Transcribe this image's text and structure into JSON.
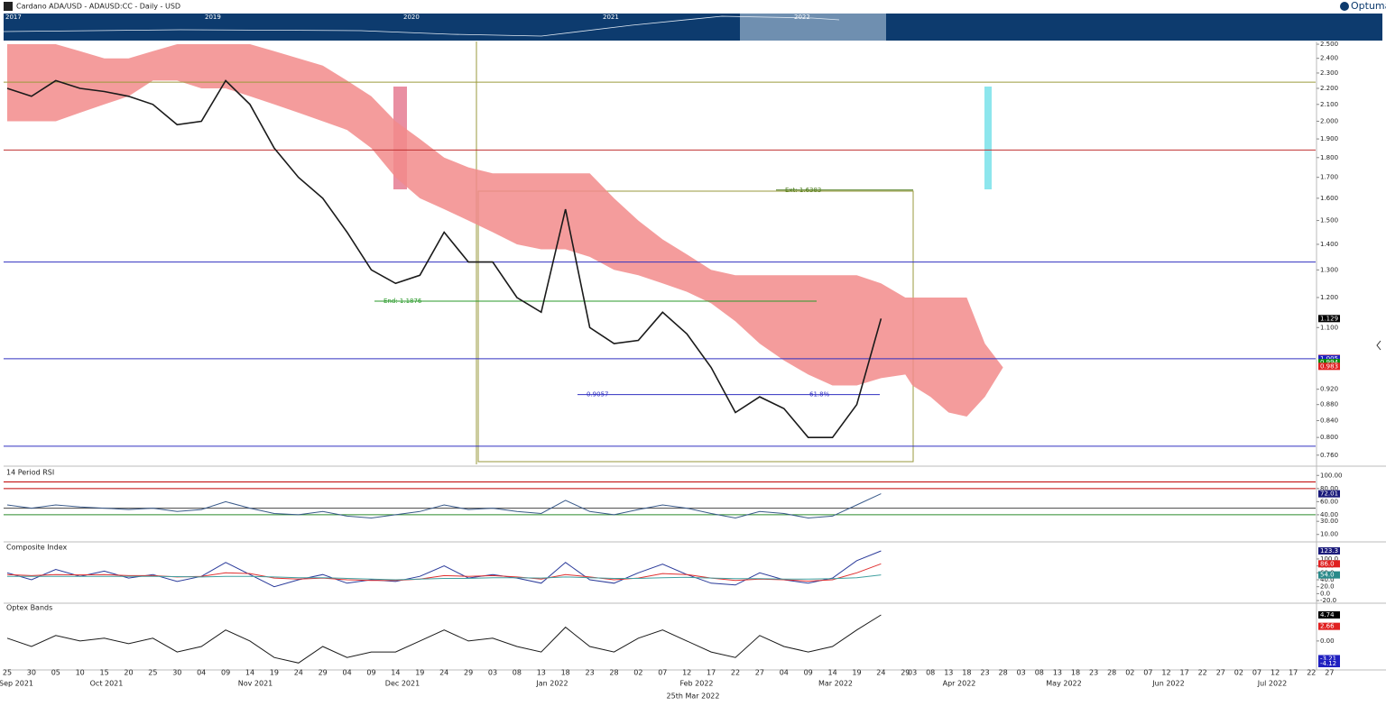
{
  "header": {
    "title": "Cardano ADA/USD - ADAUSD:CC - Daily - USD",
    "logo": "Optuma"
  },
  "navigator": {
    "years": [
      "2017",
      "2019",
      "2020",
      "2021",
      "2022"
    ]
  },
  "x_axis": {
    "months": [
      "Sep 2021",
      "Oct 2021",
      "Nov 2021",
      "Dec 2021",
      "Jan 2022",
      "Feb 2022",
      "Mar 2022",
      "Apr 2022",
      "May 2022",
      "Jun 2022",
      "Jul 2022"
    ],
    "caption": "25th Mar 2022"
  },
  "chart_data": [
    {
      "type": "line",
      "log": true,
      "categories": [
        "25",
        "30",
        "05",
        "10",
        "15",
        "20",
        "25",
        "30",
        "04",
        "09",
        "14",
        "19",
        "24",
        "29",
        "04",
        "09",
        "14",
        "19",
        "24",
        "29",
        "03",
        "08",
        "13",
        "18",
        "23",
        "28",
        "02",
        "07",
        "12",
        "17",
        "22",
        "27",
        "04",
        "09",
        "14",
        "19",
        "24",
        "29",
        "03",
        "08",
        "13",
        "18",
        "23",
        "28",
        "03",
        "08",
        "13",
        "18",
        "23",
        "28",
        "02",
        "07",
        "12",
        "17",
        "22",
        "27",
        "02",
        "07",
        "12",
        "17",
        "22",
        "27"
      ],
      "series": [
        {
          "color": "#1a1a1a",
          "values": [
            2.2,
            2.15,
            2.25,
            2.2,
            2.18,
            2.15,
            2.1,
            1.98,
            2.0,
            2.25,
            2.1,
            1.85,
            1.7,
            1.6,
            1.45,
            1.3,
            1.25,
            1.28,
            1.45,
            1.33,
            1.33,
            1.2,
            1.15,
            1.55,
            1.1,
            1.05,
            1.06,
            1.15,
            1.08,
            0.98,
            0.86,
            0.9,
            0.87,
            0.8,
            0.8,
            0.88,
            1.129,
            null,
            null,
            null,
            null,
            null,
            null,
            null,
            null,
            null,
            null,
            null,
            null,
            null,
            null,
            null,
            null,
            null,
            null,
            null,
            null,
            null,
            null,
            null,
            null,
            null
          ]
        }
      ],
      "band": {
        "color": "#f28b8b",
        "upper": [
          2.5,
          2.5,
          2.5,
          2.45,
          2.4,
          2.4,
          2.45,
          2.5,
          2.5,
          2.5,
          2.5,
          2.45,
          2.4,
          2.35,
          2.25,
          2.15,
          2.0,
          1.9,
          1.8,
          1.75,
          1.72,
          1.72,
          1.72,
          1.72,
          1.72,
          1.6,
          1.5,
          1.42,
          1.36,
          1.3,
          1.28,
          1.28,
          1.28,
          1.28,
          1.28,
          1.28,
          1.25,
          1.2,
          1.2,
          1.2,
          1.2,
          1.2,
          1.05,
          0.98,
          null,
          null,
          null,
          null,
          null,
          null,
          null,
          null,
          null,
          null,
          null,
          null,
          null,
          null,
          null,
          null,
          null,
          null
        ],
        "lower": [
          2.0,
          2.0,
          2.0,
          2.05,
          2.1,
          2.15,
          2.25,
          2.25,
          2.2,
          2.2,
          2.15,
          2.1,
          2.05,
          2.0,
          1.95,
          1.85,
          1.7,
          1.6,
          1.55,
          1.5,
          1.45,
          1.4,
          1.38,
          1.38,
          1.35,
          1.3,
          1.28,
          1.25,
          1.22,
          1.18,
          1.12,
          1.05,
          1.0,
          0.96,
          0.93,
          0.93,
          0.95,
          0.96,
          0.93,
          0.9,
          0.86,
          0.85,
          0.9,
          0.98,
          null,
          null,
          null,
          null,
          null,
          null,
          null,
          null,
          null,
          null,
          null,
          null,
          null,
          null,
          null,
          null,
          null,
          null
        ]
      },
      "ylim": [
        0.74,
        2.52
      ],
      "yticks": [
        {
          "value": 2.5,
          "label": "2.500"
        },
        {
          "value": 2.4,
          "label": "2.400"
        },
        {
          "value": 2.3,
          "label": "2.300"
        },
        {
          "value": 2.2,
          "label": "2.200"
        },
        {
          "value": 2.1,
          "label": "2.100"
        },
        {
          "value": 2.0,
          "label": "2.000"
        },
        {
          "value": 1.9,
          "label": "1.900"
        },
        {
          "value": 1.8,
          "label": "1.800"
        },
        {
          "value": 1.7,
          "label": "1.700"
        },
        {
          "value": 1.6,
          "label": "1.600"
        },
        {
          "value": 1.5,
          "label": "1.500"
        },
        {
          "value": 1.4,
          "label": "1.400"
        },
        {
          "value": 1.3,
          "label": "1.300"
        },
        {
          "value": 1.2,
          "label": "1.200"
        },
        {
          "value": 1.1,
          "label": "1.100"
        },
        {
          "value": 0.92,
          "label": "0.920"
        },
        {
          "value": 0.88,
          "label": "0.880"
        },
        {
          "value": 0.84,
          "label": "0.840"
        },
        {
          "value": 0.8,
          "label": "0.800"
        },
        {
          "value": 0.76,
          "label": "0.760"
        }
      ],
      "levels": [
        {
          "value": 2.24,
          "color": "#9a9a3c"
        },
        {
          "value": 1.84,
          "color": "#c03030"
        },
        {
          "value": 1.33,
          "color": "#3030c0"
        },
        {
          "value": 1.005,
          "color": "#3030c0"
        },
        {
          "value": 0.78,
          "color": "#3030c0"
        }
      ],
      "fib_lines": [
        {
          "label": "Ext: 1.6383",
          "value": 1.6383,
          "color": "#4a7a1a"
        },
        {
          "label": "End: 1.1876",
          "value": 1.1876,
          "color": "#2a9a2a"
        },
        {
          "label": "0.9057",
          "value": 0.9057,
          "color": "#3030c0"
        }
      ],
      "fib_ratio": "61.8%",
      "tags": [
        {
          "value": 1.129,
          "label": "1.129",
          "color": "#000000"
        },
        {
          "value": 1.006,
          "label": "1.006",
          "color": "#e02020"
        },
        {
          "value": 1.005,
          "label": "1.005",
          "color": "#2020c0"
        },
        {
          "value": 0.994,
          "label": "0.994",
          "color": "#0a8a0a"
        },
        {
          "value": 0.983,
          "label": "0.983",
          "color": "#e02020"
        }
      ]
    },
    {
      "type": "line",
      "title": "14 Period RSI",
      "series": [
        {
          "color": "#3a5a8a",
          "values": [
            55,
            50,
            55,
            52,
            50,
            48,
            50,
            45,
            48,
            60,
            50,
            42,
            40,
            45,
            38,
            35,
            40,
            45,
            55,
            48,
            50,
            45,
            42,
            62,
            45,
            40,
            48,
            55,
            50,
            42,
            35,
            45,
            42,
            35,
            38,
            55,
            72.01,
            null,
            null,
            null,
            null,
            null,
            null,
            null,
            null,
            null,
            null,
            null,
            null,
            null,
            null,
            null,
            null,
            null,
            null,
            null,
            null,
            null,
            null,
            null,
            null,
            null
          ]
        }
      ],
      "ylim": [
        0,
        110
      ],
      "yticks": [
        {
          "value": 100,
          "label": "100.00"
        },
        {
          "value": 80,
          "label": "80.00"
        },
        {
          "value": 60,
          "label": "60.00"
        },
        {
          "value": 40,
          "label": "40.00"
        },
        {
          "value": 30,
          "label": "30.00"
        },
        {
          "value": 10,
          "label": "10.00"
        }
      ],
      "levels": [
        {
          "value": 90,
          "color": "#c00000"
        },
        {
          "value": 80,
          "color": "#c00000"
        },
        {
          "value": 50,
          "color": "#444444"
        },
        {
          "value": 40,
          "color": "#2a8a2a"
        }
      ],
      "tags": [
        {
          "value": 72.01,
          "label": "72.01",
          "color": "#1a1a7a"
        }
      ]
    },
    {
      "type": "line",
      "title": "Composite Index",
      "series": [
        {
          "color": "#2a3a9a",
          "values": [
            60,
            40,
            70,
            50,
            65,
            45,
            55,
            35,
            50,
            90,
            55,
            20,
            40,
            55,
            30,
            40,
            35,
            50,
            80,
            45,
            55,
            45,
            30,
            90,
            40,
            30,
            60,
            85,
            55,
            30,
            25,
            60,
            40,
            30,
            45,
            95,
            123.3,
            null,
            null,
            null,
            null,
            null,
            null,
            null,
            null,
            null,
            null,
            null,
            null,
            null,
            null,
            null,
            null,
            null,
            null,
            null,
            null,
            null,
            null,
            null,
            null,
            null
          ]
        },
        {
          "color": "#e03030",
          "values": [
            55,
            52,
            55,
            54,
            55,
            52,
            52,
            48,
            50,
            60,
            58,
            45,
            42,
            45,
            40,
            38,
            38,
            42,
            52,
            50,
            52,
            48,
            42,
            55,
            48,
            40,
            45,
            58,
            55,
            45,
            38,
            42,
            40,
            36,
            40,
            60,
            86.0,
            null,
            null,
            null,
            null,
            null,
            null,
            null,
            null,
            null,
            null,
            null,
            null,
            null,
            null,
            null,
            null,
            null,
            null,
            null,
            null,
            null,
            null,
            null,
            null,
            null
          ]
        },
        {
          "color": "#40a0a0",
          "values": [
            50,
            50,
            50,
            50,
            50,
            50,
            50,
            49,
            48,
            50,
            50,
            48,
            46,
            46,
            44,
            42,
            40,
            42,
            44,
            44,
            46,
            46,
            45,
            48,
            46,
            44,
            44,
            46,
            47,
            45,
            43,
            43,
            42,
            42,
            43,
            46,
            54.0,
            null,
            null,
            null,
            null,
            null,
            null,
            null,
            null,
            null,
            null,
            null,
            null,
            null,
            null,
            null,
            null,
            null,
            null,
            null,
            null,
            null,
            null,
            null,
            null,
            null
          ]
        }
      ],
      "ylim": [
        -25,
        144
      ],
      "yticks": [
        {
          "value": 100,
          "label": "100.0"
        },
        {
          "value": 80,
          "label": "80.0"
        },
        {
          "value": 60,
          "label": "60.0"
        },
        {
          "value": 40,
          "label": "40.0"
        },
        {
          "value": 20,
          "label": "20.0"
        },
        {
          "value": 0,
          "label": "0.0"
        },
        {
          "value": -20,
          "label": "-20.0"
        }
      ],
      "tags": [
        {
          "value": 123.3,
          "label": "123.3",
          "color": "#1a1a7a"
        },
        {
          "value": 86.0,
          "label": "86.0",
          "color": "#e02020"
        },
        {
          "value": 54.0,
          "label": "54.0",
          "color": "#2a8a8a"
        }
      ]
    },
    {
      "type": "line",
      "title": "Optex Bands",
      "series": [
        {
          "color": "#1a1a1a",
          "values": [
            0.5,
            -1,
            1,
            0,
            0.5,
            -0.5,
            0.5,
            -2,
            -1,
            2,
            0,
            -3,
            -4,
            -1,
            -3,
            -2,
            -2,
            0,
            2,
            0,
            0.5,
            -1,
            -2,
            2.5,
            -1,
            -2,
            0.5,
            2,
            0,
            -2,
            -3,
            1,
            -1,
            -2,
            -1,
            2,
            4.74,
            null,
            null,
            null,
            null,
            null,
            null,
            null,
            null,
            null,
            null,
            null,
            null,
            null,
            null,
            null,
            null,
            null,
            null,
            null,
            null,
            null,
            null,
            null,
            null,
            null
          ]
        }
      ],
      "ylim": [
        -5.1,
        6.7
      ],
      "yticks": [
        {
          "value": 0,
          "label": "0.00"
        }
      ],
      "tags": [
        {
          "value": 4.74,
          "label": "4.74",
          "color": "#000000"
        },
        {
          "value": 2.66,
          "label": "2.66",
          "color": "#e02020"
        },
        {
          "value": -3.21,
          "label": "-3.21",
          "color": "#2020c0"
        },
        {
          "value": -4.12,
          "label": "-4.12",
          "color": "#2020c0"
        }
      ]
    }
  ]
}
